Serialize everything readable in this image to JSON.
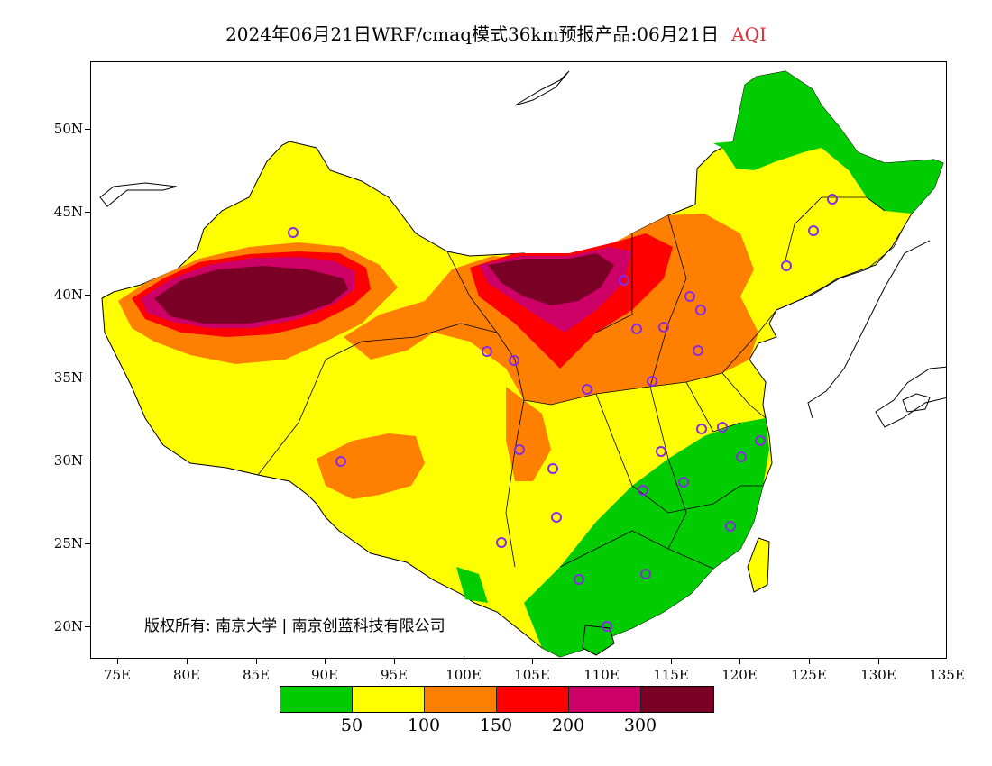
{
  "title": {
    "text": "2024年06月21日WRF/cmaq模式36km预报产品:06月21日",
    "variable": "AQI"
  },
  "axes": {
    "lat_labels": [
      "50N",
      "45N",
      "40N",
      "35N",
      "30N",
      "25N",
      "20N"
    ],
    "lon_labels": [
      "75E",
      "80E",
      "85E",
      "90E",
      "95E",
      "100E",
      "105E",
      "110E",
      "115E",
      "120E",
      "125E",
      "130E",
      "135E"
    ]
  },
  "colorbar": {
    "colors": [
      "#00cc00",
      "#ffff00",
      "#ff8000",
      "#ff0000",
      "#cc0066",
      "#7a0026"
    ],
    "labels": [
      "50",
      "100",
      "150",
      "200",
      "300"
    ]
  },
  "copyright": "版权所有: 南京大学 | 南京创蓝科技有限公司",
  "city_marker_color": "#8a2be2"
}
